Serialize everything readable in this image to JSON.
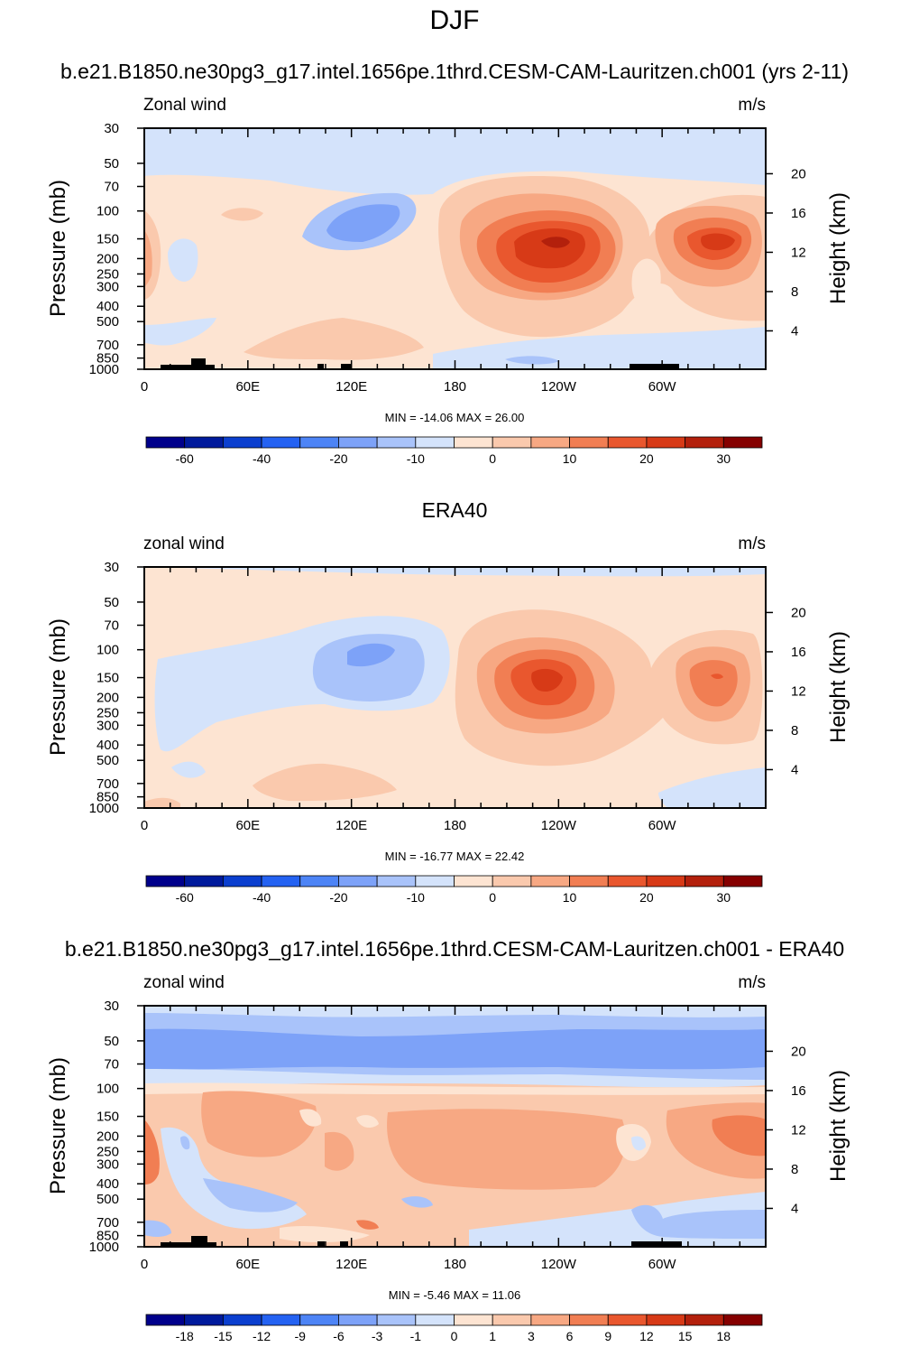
{
  "figure": {
    "title": "DJF"
  },
  "chart_data": [
    {
      "type": "heatmap",
      "subtitle": "b.e21.B1850.ne30pg3_g17.intel.1656pe.1thrd.CESM-CAM-Lauritzen.ch001 (yrs 2-11)",
      "left_label": "Zonal wind",
      "right_label": "m/s",
      "xlabel_ticks": [
        "0",
        "60E",
        "120E",
        "180",
        "120W",
        "60W"
      ],
      "xlim": [
        0,
        360
      ],
      "ylabel": "Pressure (mb)",
      "y_ticks": [
        "30",
        "50",
        "70",
        "100",
        "150",
        "200",
        "250",
        "300",
        "400",
        "500",
        "700",
        "850",
        "1000"
      ],
      "y_tick_values": [
        30,
        50,
        70,
        100,
        150,
        200,
        250,
        300,
        400,
        500,
        700,
        850,
        1000
      ],
      "ylim": [
        1000,
        30
      ],
      "y2label": "Height (km)",
      "y2_ticks": [
        "20",
        "16",
        "12",
        "8",
        "4"
      ],
      "y2_tick_values": [
        20,
        16,
        12,
        8,
        4
      ],
      "min_max": "MIN = -14.06  MAX = 26.00",
      "colorbar_labels": [
        "-60",
        "-40",
        "-20",
        "-10",
        "0",
        "10",
        "20",
        "30"
      ],
      "features": [
        {
          "region": "jet maximum",
          "lon": 237,
          "p": 150,
          "value": 26.0
        },
        {
          "region": "jet secondary",
          "lon": 330,
          "p": 150,
          "value": 20.0
        },
        {
          "region": "easterly minimum",
          "lon": 110,
          "p": 110,
          "value": -14.06
        }
      ]
    },
    {
      "type": "heatmap",
      "subtitle": "ERA40",
      "left_label": "zonal wind",
      "right_label": "m/s",
      "xlabel_ticks": [
        "0",
        "60E",
        "120E",
        "180",
        "120W",
        "60W"
      ],
      "xlim": [
        0,
        360
      ],
      "ylabel": "Pressure (mb)",
      "y_ticks": [
        "30",
        "50",
        "70",
        "100",
        "150",
        "200",
        "250",
        "300",
        "400",
        "500",
        "700",
        "850",
        "1000"
      ],
      "y_tick_values": [
        30,
        50,
        70,
        100,
        150,
        200,
        250,
        300,
        400,
        500,
        700,
        850,
        1000
      ],
      "ylim": [
        1000,
        30
      ],
      "y2label": "Height (km)",
      "y2_ticks": [
        "20",
        "16",
        "12",
        "8",
        "4"
      ],
      "y2_tick_values": [
        20,
        16,
        12,
        8,
        4
      ],
      "min_max": "MIN = -16.77  MAX = 22.42",
      "colorbar_labels": [
        "-60",
        "-40",
        "-20",
        "-10",
        "0",
        "10",
        "20",
        "30"
      ],
      "features": [
        {
          "region": "jet maximum",
          "lon": 235,
          "p": 150,
          "value": 22.42
        },
        {
          "region": "jet secondary",
          "lon": 330,
          "p": 150,
          "value": 17.0
        },
        {
          "region": "easterly minimum",
          "lon": 117,
          "p": 110,
          "value": -16.77
        }
      ]
    },
    {
      "type": "heatmap",
      "subtitle": "b.e21.B1850.ne30pg3_g17.intel.1656pe.1thrd.CESM-CAM-Lauritzen.ch001 - ERA40",
      "left_label": "zonal wind",
      "right_label": "m/s",
      "xlabel_ticks": [
        "0",
        "60E",
        "120E",
        "180",
        "120W",
        "60W"
      ],
      "xlim": [
        0,
        360
      ],
      "ylabel": "Pressure (mb)",
      "y_ticks": [
        "30",
        "50",
        "70",
        "100",
        "150",
        "200",
        "250",
        "300",
        "400",
        "500",
        "700",
        "850",
        "1000"
      ],
      "y_tick_values": [
        30,
        50,
        70,
        100,
        150,
        200,
        250,
        300,
        400,
        500,
        700,
        850,
        1000
      ],
      "ylim": [
        1000,
        30
      ],
      "y2label": "Height (km)",
      "y2_ticks": [
        "20",
        "16",
        "12",
        "8",
        "4"
      ],
      "y2_tick_values": [
        20,
        16,
        12,
        8,
        4
      ],
      "min_max": "MIN =  -5.46  MAX =  11.06",
      "colorbar_labels": [
        "-18",
        "-15",
        "-12",
        "-9",
        "-6",
        "-3",
        "-1",
        "0",
        "1",
        "3",
        "6",
        "9",
        "12",
        "15",
        "18"
      ],
      "features": [
        {
          "region": "stratospheric negative band",
          "lon": 180,
          "p": 55,
          "value": -5.46
        },
        {
          "region": "upper troposphere maximum",
          "lon": 345,
          "p": 180,
          "value": 11.06
        }
      ]
    }
  ],
  "colors": {
    "field_levels": [
      "#00008b",
      "#001a9c",
      "#0b3fcf",
      "#2462f2",
      "#4d84f6",
      "#7da2f8",
      "#a9c3fa",
      "#d4e3fb",
      "#fde4d2",
      "#fac9ad",
      "#f7a883",
      "#f17e53",
      "#e9572e",
      "#d73a17",
      "#b3200c",
      "#850000"
    ],
    "diff_levels": [
      "#00008b",
      "#001a9c",
      "#0b3fcf",
      "#2462f2",
      "#4d84f6",
      "#7da2f8",
      "#a9c3fa",
      "#d4e3fb",
      "#fde4d2",
      "#fac9ad",
      "#f7a883",
      "#f17e53",
      "#e9572e",
      "#d73a17",
      "#b3200c",
      "#850000"
    ]
  }
}
